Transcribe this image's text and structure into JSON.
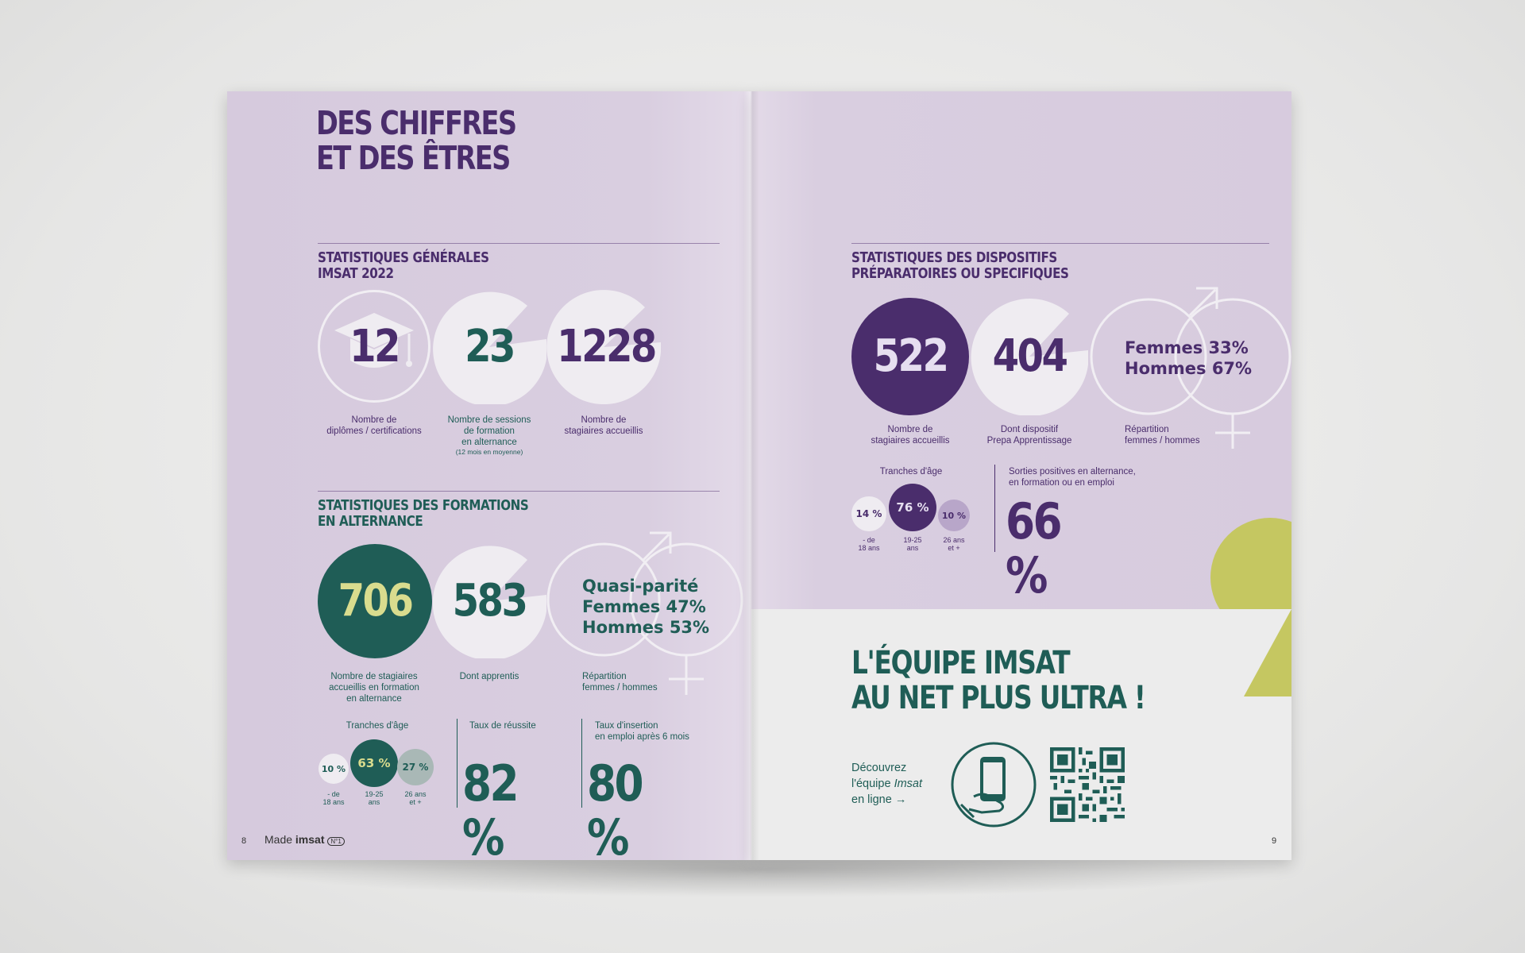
{
  "left": {
    "title": [
      "DES CHIFFRES",
      "ET DES ÊTRES"
    ],
    "general": {
      "title": [
        "STATISTIQUES GÉNÉRALES",
        "IMSAT 2022"
      ],
      "stats": [
        {
          "value": "12",
          "caption": [
            "Nombre de",
            "diplômes / certifications"
          ]
        },
        {
          "value": "23",
          "caption": [
            "Nombre de sessions",
            "de formation",
            "en alternance"
          ],
          "note": "(12 mois en moyenne)"
        },
        {
          "value": "1228",
          "caption": [
            "Nombre de",
            "stagiaires accueillis"
          ]
        }
      ]
    },
    "alternance": {
      "title": [
        "STATISTIQUES DES FORMATIONS",
        "EN ALTERNANCE"
      ],
      "stats": [
        {
          "value": "706",
          "caption": [
            "Nombre de stagiaires",
            "accueillis en formation",
            "en alternance"
          ]
        },
        {
          "value": "583",
          "caption": [
            "Dont apprentis"
          ]
        },
        {
          "lines": [
            "Quasi-parité",
            "Femmes 47%",
            "Hommes 53%"
          ],
          "caption": [
            "Répartition",
            "femmes / hommes"
          ]
        }
      ],
      "age": {
        "label": "Tranches d'âge",
        "items": [
          {
            "value": "10 %",
            "caption": [
              "- de",
              "18 ans"
            ]
          },
          {
            "value": "63 %",
            "caption": [
              "19-25",
              "ans"
            ]
          },
          {
            "value": "27 %",
            "caption": [
              "26 ans",
              "et +"
            ]
          }
        ]
      },
      "success": {
        "label": "Taux de réussite",
        "value": "82 %"
      },
      "insertion": {
        "label": [
          "Taux d'insertion",
          "en emploi après 6 mois"
        ],
        "value": "80 %"
      }
    },
    "footer": {
      "page": "8",
      "brand_prefix": "Made",
      "brand": "imsat",
      "badge": "N°1"
    }
  },
  "right": {
    "specific": {
      "title": [
        "STATISTIQUES DES DISPOSITIFS",
        "PRÉPARATOIRES OU SPECIFIQUES"
      ],
      "stats": [
        {
          "value": "522",
          "caption": [
            "Nombre de",
            "stagiaires accueillis"
          ]
        },
        {
          "value": "404",
          "caption": [
            "Dont dispositif",
            "Prepa Apprentissage"
          ]
        },
        {
          "lines": [
            "Femmes 33%",
            "Hommes 67%"
          ],
          "caption": [
            "Répartition",
            "femmes / hommes"
          ]
        }
      ],
      "age": {
        "label": "Tranches d'âge",
        "items": [
          {
            "value": "14 %",
            "caption": [
              "- de",
              "18 ans"
            ]
          },
          {
            "value": "76 %",
            "caption": [
              "19-25",
              "ans"
            ]
          },
          {
            "value": "10 %",
            "caption": [
              "26 ans",
              "et +"
            ]
          }
        ]
      },
      "sorties": {
        "label": [
          "Sorties positives en alternance,",
          "en formation ou en emploi"
        ],
        "value": "66 %"
      }
    },
    "team": {
      "title": [
        "L'ÉQUIPE IMSAT",
        "AU NET PLUS ULTRA !"
      ],
      "cta": [
        "Découvrez",
        "l'équipe",
        "Imsat",
        "en ligne →"
      ]
    },
    "footer": {
      "page": "9"
    }
  },
  "colors": {
    "purple": "#4a2d6c",
    "green": "#1f5d56",
    "lilac": "#d8cde0",
    "yellow": "#c5c761"
  }
}
